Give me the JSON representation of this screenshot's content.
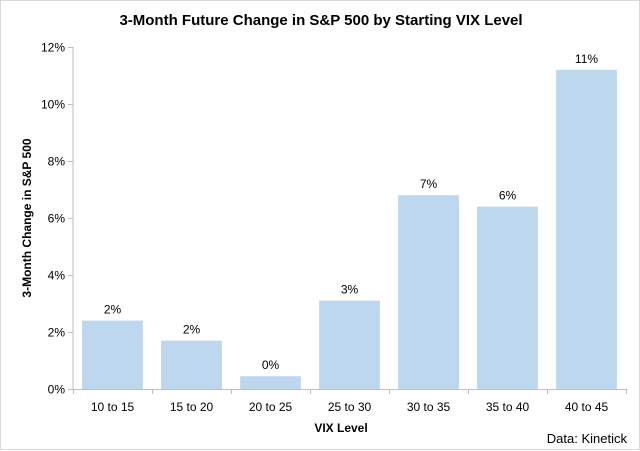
{
  "chart_data": {
    "type": "bar",
    "title": "3-Month Future Change in S&P 500 by Starting VIX Level",
    "xlabel": "VIX Level",
    "ylabel": "3-Month Change in S&P 500",
    "categories": [
      "10 to 15",
      "15 to 20",
      "20 to 25",
      "25 to 30",
      "30 to 35",
      "35 to 40",
      "40 to 45"
    ],
    "values": [
      2.4,
      1.7,
      0.45,
      3.1,
      6.8,
      6.4,
      11.2
    ],
    "data_labels": [
      "2%",
      "2%",
      "0%",
      "3%",
      "7%",
      "6%",
      "11%"
    ],
    "ylim": [
      0,
      12
    ],
    "y_ticks": [
      0,
      2,
      4,
      6,
      8,
      10,
      12
    ],
    "y_tick_labels": [
      "0%",
      "2%",
      "4%",
      "6%",
      "8%",
      "10%",
      "12%"
    ],
    "grid": false,
    "legend": "none",
    "bar_color": "#bdd7ee",
    "axis_color": "#bfbfbf",
    "source": "Data: Kinetick"
  }
}
